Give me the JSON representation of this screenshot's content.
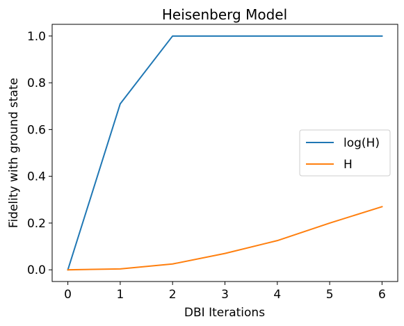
{
  "chart_data": {
    "type": "line",
    "title": "Heisenberg Model",
    "xlabel": "DBI Iterations",
    "ylabel": "Fidelity with ground state",
    "x": [
      0,
      1,
      2,
      3,
      4,
      5,
      6
    ],
    "xlim": [
      -0.3,
      6.3
    ],
    "ylim": [
      -0.05,
      1.05
    ],
    "xticks": [
      0,
      1,
      2,
      3,
      4,
      5,
      6
    ],
    "yticks": [
      0.0,
      0.2,
      0.4,
      0.6,
      0.8,
      1.0
    ],
    "xtick_labels": [
      "0",
      "1",
      "2",
      "3",
      "4",
      "5",
      "6"
    ],
    "ytick_labels": [
      "0.0",
      "0.2",
      "0.4",
      "0.6",
      "0.8",
      "1.0"
    ],
    "grid": false,
    "legend_position": "center-right",
    "series": [
      {
        "name": "log(H)",
        "color": "#1f77b4",
        "values": [
          0.0,
          0.71,
          1.0,
          1.0,
          1.0,
          1.0,
          1.0
        ]
      },
      {
        "name": "H",
        "color": "#ff7f0e",
        "values": [
          0.0,
          0.004,
          0.025,
          0.07,
          0.125,
          0.2,
          0.27
        ]
      }
    ]
  }
}
